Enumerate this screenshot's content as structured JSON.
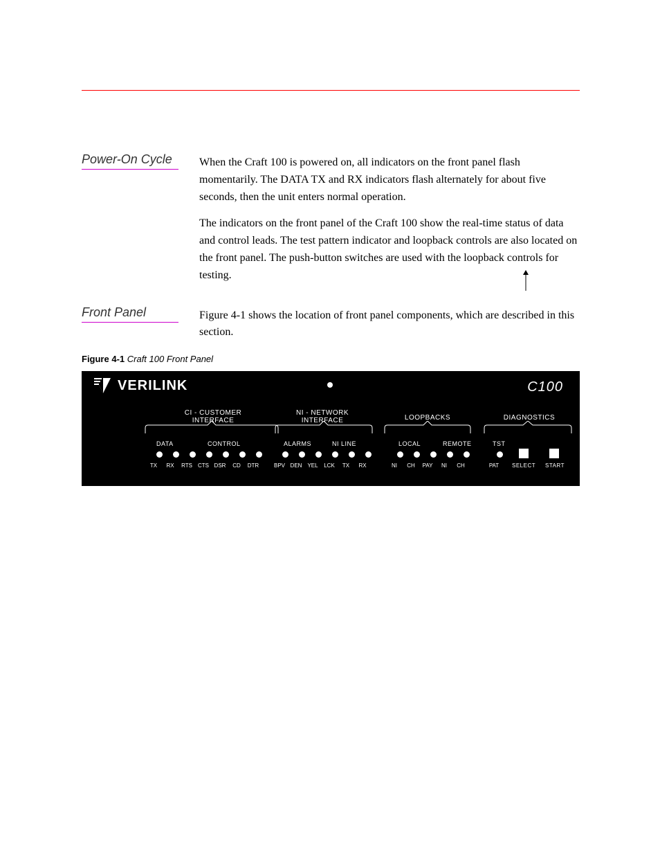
{
  "top_rule_color": "#ff0000",
  "heading_underline_color": "#cc00cc",
  "section1": {
    "heading": "Power-On Cycle",
    "paragraphs": [
      "When the Craft 100 is powered on, all indicators on the front panel flash momentarily. The DATA TX and RX indicators flash alternately for about five seconds, then the unit enters normal operation.",
      "The indicators on the front panel of the Craft 100 show the real-time status of data and control leads. The test pattern indicator and loopback controls are also located on the front panel. The push-button switches are used with the loopback controls for testing."
    ]
  },
  "section2": {
    "heading": "Front Panel",
    "paragraphs": [
      "Figure 4-1 shows the location of front panel components, which are described in this section."
    ]
  },
  "figure": {
    "number": "Figure 4-1",
    "caption": "Craft 100 Front Panel"
  },
  "panel": {
    "brand": "VERILINK",
    "model": "C100",
    "sections": {
      "ci": {
        "label": "CI - CUSTOMER\nINTERFACE",
        "sub": {
          "data": "DATA",
          "control": "CONTROL"
        },
        "leds": [
          "TX",
          "RX",
          "RTS",
          "CTS",
          "DSR",
          "CD",
          "DTR"
        ]
      },
      "ni": {
        "label": "NI - NETWORK\nINTERFACE",
        "sub": {
          "alarms": "ALARMS",
          "niline": "NI LINE"
        },
        "leds": [
          "BPV",
          "DEN",
          "YEL",
          "LCK",
          "TX",
          "RX"
        ]
      },
      "loopbacks": {
        "label": "LOOPBACKS",
        "sub": {
          "local": "LOCAL",
          "remote": "REMOTE"
        },
        "leds": [
          "NI",
          "CH",
          "PAY",
          "NI",
          "CH"
        ]
      },
      "diag": {
        "label": "DIAGNOSTICS",
        "sub": {
          "tst": "TST"
        },
        "leds": [
          "PAT"
        ],
        "buttons": [
          "SELECT",
          "START"
        ]
      }
    }
  }
}
